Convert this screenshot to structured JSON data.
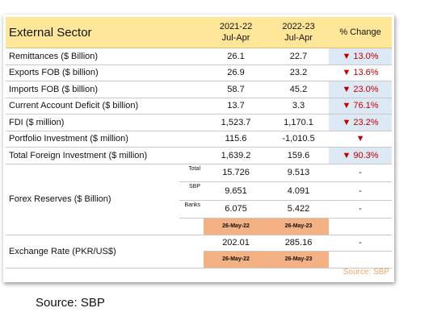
{
  "header": {
    "title": "External Sector",
    "col1": [
      "2021-22",
      "Jul-Apr"
    ],
    "col2": [
      "2022-23",
      "Jul-Apr"
    ],
    "change": "% Change"
  },
  "rows": [
    {
      "label": "Remittances ($ Billion)",
      "v1": "26.1",
      "v2": "22.7",
      "change": "▼ 13.0%"
    },
    {
      "label": "Exports FOB ($ billion)",
      "v1": "26.9",
      "v2": "23.2",
      "change": "▼ 13.6%"
    },
    {
      "label": "Imports FOB ($ billion)",
      "v1": "58.7",
      "v2": "45.2",
      "change": "▼ 23.0%"
    },
    {
      "label": "Current Account Deficit ($ billion)",
      "v1": "13.7",
      "v2": "3.3",
      "change": "▼ 76.1%"
    },
    {
      "label": "FDI ($ million)",
      "v1": "1,523.7",
      "v2": "1,170.1",
      "change": "▼ 23.2%"
    },
    {
      "label": "Portfolio Investment ($ million)",
      "v1": "115.6",
      "v2": "-1,010.5",
      "change": "▼"
    },
    {
      "label": "Total Foreign Investment ($ million)",
      "v1": "1,639.2",
      "v2": "159.6",
      "change": "▼ 90.3%"
    }
  ],
  "forex": {
    "label": "Forex Reserves ($ Billion)",
    "rows": [
      {
        "sub": "Total",
        "v1": "15.726",
        "v2": "9.513",
        "change": "-"
      },
      {
        "sub": "SBP",
        "v1": "9.651",
        "v2": "4.091",
        "change": "-"
      },
      {
        "sub": "Banks",
        "v1": "6.075",
        "v2": "5.422",
        "change": "-"
      }
    ],
    "dates": [
      "26-May-22",
      "26-May-23"
    ]
  },
  "exchange": {
    "label": "Exchange Rate (PKR/US$)",
    "v1": "202.01",
    "v2": "285.16",
    "change": "-",
    "dates": [
      "26-May-22",
      "26-May-23"
    ]
  },
  "card_source": "Source: SBP",
  "source": "Source: SBP"
}
